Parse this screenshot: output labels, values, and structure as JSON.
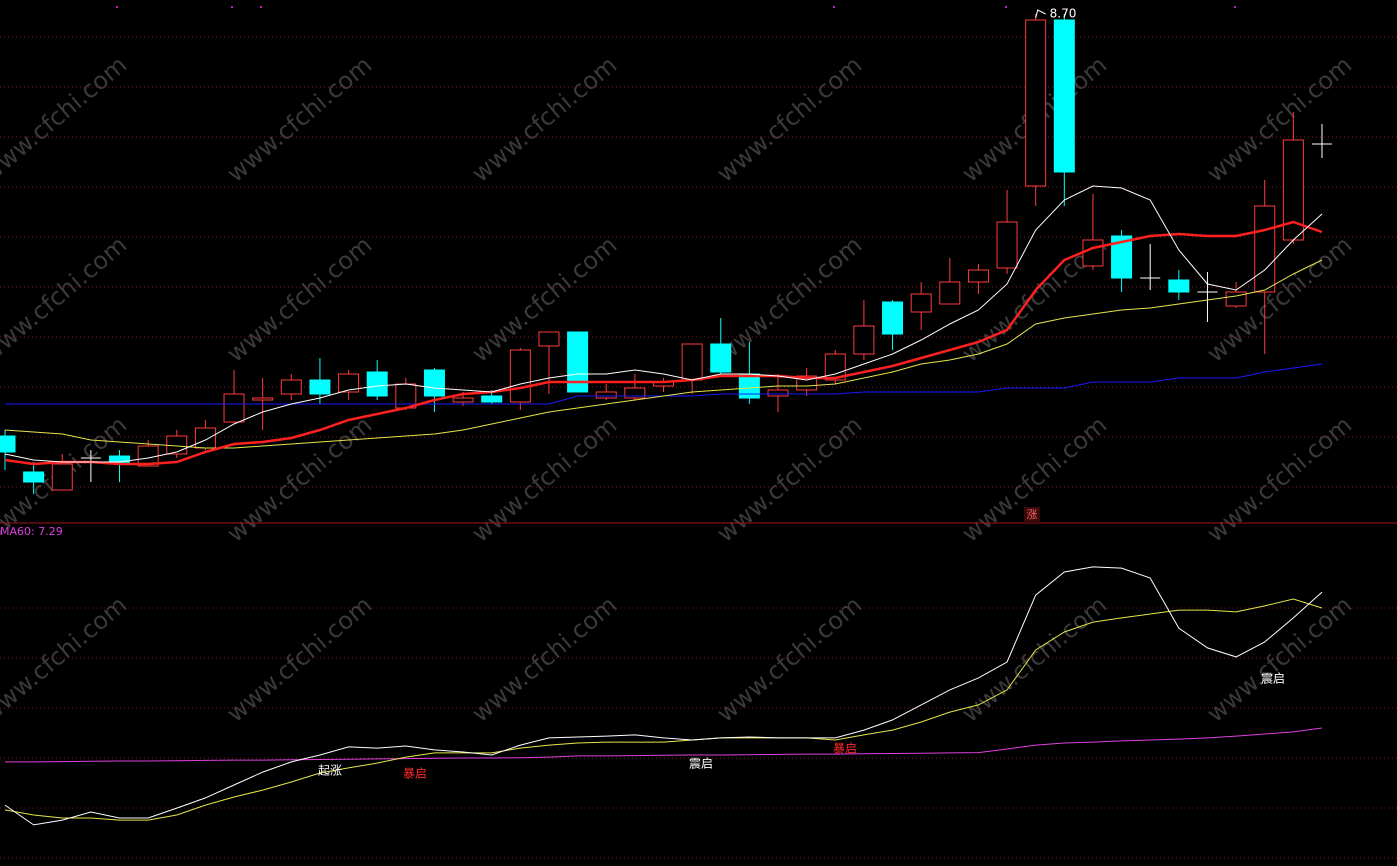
{
  "chart_data": {
    "type": "candlestick",
    "up_color": "#ff3c3c",
    "down_color": "#00ffff",
    "ylim": [
      6.155,
      8.77
    ],
    "open": [
      6.59,
      6.41,
      6.32,
      6.48,
      6.49,
      6.44,
      6.5,
      6.53,
      6.66,
      6.77,
      6.8,
      6.87,
      6.81,
      6.91,
      6.73,
      6.92,
      6.76,
      6.79,
      6.76,
      7.04,
      7.11,
      6.78,
      6.78,
      6.84,
      6.87,
      7.05,
      6.9,
      6.79,
      6.82,
      6.87,
      7.0,
      7.26,
      7.21,
      7.25,
      7.36,
      7.43,
      7.84,
      8.67,
      7.44,
      7.59,
      7.38,
      7.37,
      7.31,
      7.24,
      7.31,
      7.57,
      8.05
    ],
    "high": [
      6.62,
      6.46,
      6.5,
      6.52,
      6.52,
      6.57,
      6.62,
      6.67,
      6.92,
      6.88,
      6.9,
      6.98,
      6.92,
      6.97,
      6.88,
      6.93,
      6.81,
      6.82,
      7.03,
      7.11,
      7.11,
      6.85,
      6.9,
      6.88,
      7.05,
      7.18,
      7.06,
      6.9,
      6.93,
      7.02,
      7.27,
      7.27,
      7.36,
      7.48,
      7.45,
      7.82,
      8.7,
      8.7,
      7.8,
      7.62,
      7.55,
      7.42,
      7.41,
      7.36,
      7.87,
      8.21,
      8.15
    ],
    "low": [
      6.42,
      6.3,
      6.32,
      6.36,
      6.36,
      6.44,
      6.48,
      6.52,
      6.65,
      6.62,
      6.77,
      6.75,
      6.77,
      6.77,
      6.72,
      6.71,
      6.74,
      6.75,
      6.72,
      6.8,
      6.81,
      6.77,
      6.77,
      6.81,
      6.8,
      6.9,
      6.75,
      6.71,
      6.79,
      6.85,
      6.97,
      7.02,
      7.12,
      7.25,
      7.3,
      7.4,
      7.74,
      7.74,
      7.42,
      7.31,
      7.32,
      7.27,
      7.16,
      7.23,
      7.0,
      7.55,
      7.98
    ],
    "close": [
      6.51,
      6.36,
      6.45,
      6.48,
      6.45,
      6.54,
      6.59,
      6.63,
      6.8,
      6.78,
      6.87,
      6.8,
      6.9,
      6.79,
      6.85,
      6.79,
      6.78,
      6.76,
      7.02,
      7.11,
      6.81,
      6.81,
      6.83,
      6.86,
      7.05,
      6.91,
      6.78,
      6.82,
      6.89,
      7.0,
      7.14,
      7.1,
      7.3,
      7.36,
      7.42,
      7.66,
      8.67,
      7.91,
      7.57,
      7.38,
      7.38,
      7.31,
      7.31,
      7.31,
      7.74,
      8.07,
      8.05
    ],
    "series": [
      {
        "color": "#1a1aff",
        "width": 1,
        "values": [
          6.75,
          6.75,
          6.75,
          6.75,
          6.75,
          6.75,
          6.75,
          6.75,
          6.75,
          6.75,
          6.75,
          6.75,
          6.75,
          6.75,
          6.75,
          6.75,
          6.75,
          6.75,
          6.75,
          6.75,
          6.79,
          6.79,
          6.79,
          6.79,
          6.79,
          6.8,
          6.8,
          6.8,
          6.8,
          6.8,
          6.81,
          6.81,
          6.81,
          6.81,
          6.81,
          6.83,
          6.83,
          6.83,
          6.86,
          6.86,
          6.86,
          6.88,
          6.88,
          6.88,
          6.91,
          6.93,
          6.95
        ]
      },
      {
        "color": "#e6e64a",
        "width": 1,
        "values": [
          6.62,
          6.61,
          6.6,
          6.57,
          6.56,
          6.55,
          6.54,
          6.53,
          6.53,
          6.54,
          6.55,
          6.56,
          6.57,
          6.58,
          6.59,
          6.6,
          6.62,
          6.65,
          6.68,
          6.71,
          6.73,
          6.75,
          6.77,
          6.79,
          6.81,
          6.82,
          6.83,
          6.84,
          6.84,
          6.85,
          6.88,
          6.91,
          6.95,
          6.97,
          7.0,
          7.05,
          7.15,
          7.18,
          7.2,
          7.22,
          7.23,
          7.25,
          7.27,
          7.29,
          7.32,
          7.4,
          7.47
        ]
      },
      {
        "color": "#ff2020",
        "width": 2.5,
        "values": [
          6.47,
          6.45,
          6.46,
          6.46,
          6.45,
          6.45,
          6.46,
          6.51,
          6.55,
          6.56,
          6.58,
          6.62,
          6.67,
          6.7,
          6.73,
          6.77,
          6.8,
          6.81,
          6.83,
          6.86,
          6.86,
          6.86,
          6.86,
          6.86,
          6.87,
          6.89,
          6.89,
          6.89,
          6.88,
          6.88,
          6.91,
          6.94,
          6.98,
          7.02,
          7.06,
          7.12,
          7.32,
          7.47,
          7.53,
          7.56,
          7.59,
          7.6,
          7.59,
          7.59,
          7.62,
          7.66,
          7.61
        ]
      },
      {
        "color": "#ffffff",
        "width": 1,
        "values": [
          6.5,
          6.47,
          6.46,
          6.46,
          6.46,
          6.48,
          6.51,
          6.57,
          6.65,
          6.71,
          6.75,
          6.78,
          6.82,
          6.84,
          6.85,
          6.83,
          6.82,
          6.81,
          6.85,
          6.88,
          6.9,
          6.9,
          6.92,
          6.9,
          6.87,
          6.9,
          6.9,
          6.89,
          6.87,
          6.9,
          6.95,
          7.0,
          7.07,
          7.15,
          7.22,
          7.35,
          7.62,
          7.77,
          7.84,
          7.83,
          7.77,
          7.52,
          7.35,
          7.32,
          7.42,
          7.57,
          7.7
        ]
      }
    ],
    "max_label": {
      "value": 8.7,
      "label": "8.70"
    },
    "marker": "涨",
    "indicator": {
      "type": "line",
      "label": "MA60: 7.29",
      "ylim": [
        0,
        110
      ],
      "series": [
        {
          "color": "#e040e0",
          "values": [
            32.7,
            32.7,
            32.8,
            32.9,
            33,
            33,
            33.1,
            33.2,
            33.3,
            33.3,
            33.4,
            33.5,
            33.6,
            33.7,
            33.8,
            33.9,
            34,
            34,
            34.1,
            34.3,
            34.7,
            34.7,
            34.8,
            34.9,
            35,
            35,
            35.1,
            35.2,
            35.3,
            35.3,
            35.4,
            35.5,
            35.6,
            35.7,
            35.8,
            37,
            38.3,
            39,
            39.3,
            39.7,
            40,
            40.3,
            40.7,
            41.3,
            42,
            42.7,
            44
          ]
        },
        {
          "color": "#e6e64a",
          "values": [
            16.7,
            15,
            14,
            14,
            13.3,
            13.3,
            15,
            18.3,
            21,
            23.3,
            26,
            29,
            30.7,
            32.3,
            34.3,
            35.7,
            35.7,
            35.7,
            37.3,
            38.3,
            39,
            39.3,
            39.3,
            39.3,
            40,
            40.7,
            40.7,
            40.7,
            40.7,
            40,
            41.7,
            43.3,
            46,
            49.3,
            51.7,
            56.7,
            70,
            76,
            79.3,
            80.7,
            82,
            83.3,
            83.3,
            82.7,
            84.7,
            87,
            84
          ]
        },
        {
          "color": "#ffffff",
          "values": [
            18.3,
            11.7,
            13.3,
            16,
            14,
            14,
            17.3,
            20.7,
            25,
            29.3,
            32.7,
            35,
            37.7,
            37.3,
            38,
            36.7,
            36,
            35,
            38.3,
            40.7,
            41,
            41.3,
            41.7,
            40.7,
            40,
            40.7,
            41,
            40.7,
            40.7,
            40.7,
            43.3,
            46.7,
            51.7,
            56.7,
            60.7,
            66,
            88.3,
            96,
            97.7,
            97.3,
            94,
            77.3,
            70.7,
            67.7,
            72.7,
            80.7,
            89.3
          ]
        }
      ],
      "signals": [
        {
          "text": "起涨",
          "color": "#ffffff"
        },
        {
          "text": "暴启",
          "color": "#ff2a2a"
        },
        {
          "text": "震启",
          "color": "#ffffff"
        },
        {
          "text": "暴启",
          "color": "#ff2a2a"
        },
        {
          "text": "震启",
          "color": "#ffffff"
        }
      ]
    },
    "watermark": "www.cfchi.com"
  }
}
